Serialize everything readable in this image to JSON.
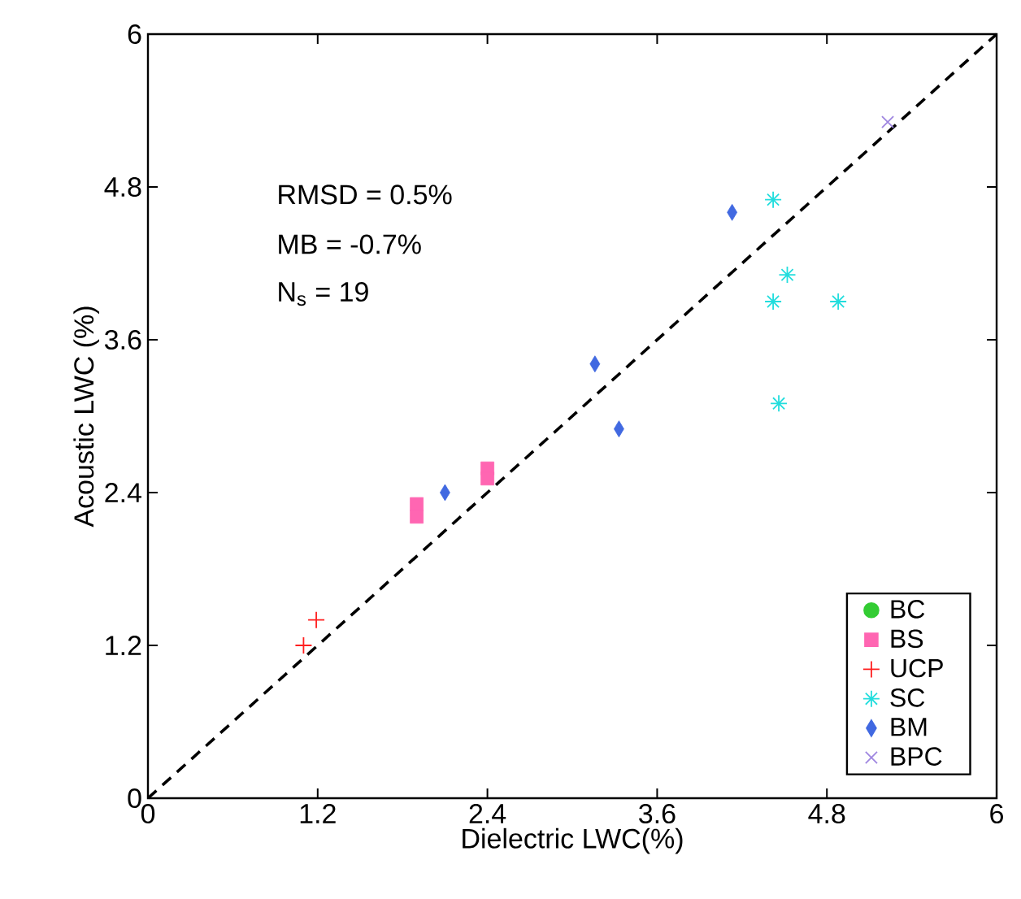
{
  "chart_data": {
    "type": "scatter",
    "xlabel": "Dielectric LWC(%)",
    "ylabel": "Acoustic LWC (%)",
    "xlim": [
      0,
      6
    ],
    "ylim": [
      0,
      6
    ],
    "xticks": [
      0,
      1.2,
      2.4,
      3.6,
      4.8,
      6
    ],
    "yticks": [
      0,
      1.2,
      2.4,
      3.6,
      4.8,
      6
    ],
    "grid": false,
    "legend": "bottom right",
    "annotations": [
      "RMSD = 0.5%",
      "MB = -0.7%",
      "N$_{s}$ = 19"
    ],
    "series": [
      {
        "name": "BC",
        "color": "#33cc33",
        "marker": "circle"
      },
      {
        "name": "BS",
        "color": "#ff66b2",
        "marker": "square",
        "x": [
          1.9,
          1.9,
          2.4,
          2.4
        ],
        "values": [
          2.31,
          2.21,
          2.59,
          2.51
        ]
      },
      {
        "name": "UCP",
        "color": "#ff2020",
        "marker": "plus",
        "x": [
          1.1,
          1.19
        ],
        "values": [
          1.2,
          1.4
        ]
      },
      {
        "name": "SC",
        "color": "#22dddd",
        "marker": "star",
        "x": [
          4.42,
          4.52,
          4.42,
          4.88,
          4.46
        ],
        "values": [
          4.7,
          4.11,
          3.9,
          3.9,
          3.1
        ]
      },
      {
        "name": "BM",
        "color": "#4169e1",
        "marker": "diamond",
        "x": [
          2.1,
          4.13,
          3.16,
          3.33
        ],
        "values": [
          2.4,
          4.6,
          3.41,
          2.9
        ]
      },
      {
        "name": "BPC",
        "color": "#9f86e0",
        "marker": "cross",
        "x": [
          5.23
        ],
        "values": [
          5.31
        ]
      },
      {
        "type": "line",
        "color": "#000000",
        "marker": "none",
        "line_style": "dashed",
        "x": [
          0,
          6
        ],
        "values": [
          0,
          6
        ]
      }
    ]
  }
}
